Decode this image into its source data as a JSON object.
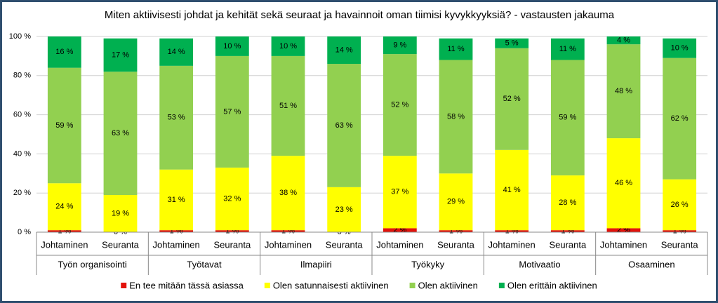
{
  "chart_data": {
    "type": "stacked-bar",
    "title": "Miten aktiivisesti johdat ja kehität sekä seuraat ja havainnoit oman tiimisi kyvykkyyksiä? - vastausten jakauma",
    "categories": [
      "Johtaminen",
      "Seuranta",
      "Johtaminen",
      "Seuranta",
      "Johtaminen",
      "Seuranta",
      "Johtaminen",
      "Seuranta",
      "Johtaminen",
      "Seuranta",
      "Johtaminen",
      "Seuranta"
    ],
    "category_groups": [
      "Työn organisointi",
      "Työtavat",
      "Ilmapiiri",
      "Työkyky",
      "Motivaatio",
      "Osaaminen"
    ],
    "series": [
      {
        "name": "En tee mitään tässä asiassa",
        "color": "#e3120b",
        "values": [
          1,
          0,
          1,
          1,
          1,
          0,
          2,
          1,
          1,
          1,
          2,
          1
        ],
        "value_labels": [
          "1 %",
          "0 %",
          "1 %",
          "1 %",
          "1 %",
          "0 %",
          "2 %",
          "1 %",
          "1 %",
          "1 %",
          "2 %",
          "1 %"
        ]
      },
      {
        "name": "Olen satunnaisesti aktiivinen",
        "color": "#ffff00",
        "values": [
          24,
          19,
          31,
          32,
          38,
          23,
          37,
          29,
          41,
          28,
          46,
          26
        ],
        "value_labels": [
          "24 %",
          "19 %",
          "31 %",
          "32 %",
          "38 %",
          "23 %",
          "37 %",
          "29 %",
          "41 %",
          "28 %",
          "46 %",
          "26 %"
        ]
      },
      {
        "name": "Olen aktiivinen",
        "color": "#92d050",
        "values": [
          59,
          63,
          53,
          57,
          51,
          63,
          52,
          58,
          52,
          59,
          48,
          62
        ],
        "value_labels": [
          "59 %",
          "63 %",
          "53 %",
          "57 %",
          "51 %",
          "63 %",
          "52 %",
          "58 %",
          "52 %",
          "59 %",
          "48 %",
          "62 %"
        ]
      },
      {
        "name": "Olen erittäin aktiivinen",
        "color": "#00b050",
        "values": [
          16,
          17,
          14,
          10,
          10,
          14,
          9,
          11,
          5,
          11,
          4,
          10
        ],
        "value_labels": [
          "16 %",
          "17 %",
          "14 %",
          "10 %",
          "10 %",
          "14 %",
          "9 %",
          "11 %",
          "5 %",
          "11 %",
          "4 %",
          "10 %"
        ]
      }
    ],
    "ylim": [
      0,
      100
    ],
    "yticks": [
      {
        "value": 0,
        "label": "0 %"
      },
      {
        "value": 20,
        "label": "20 %"
      },
      {
        "value": 40,
        "label": "40 %"
      },
      {
        "value": 60,
        "label": "60 %"
      },
      {
        "value": 80,
        "label": "80 %"
      },
      {
        "value": 100,
        "label": "100 %"
      }
    ],
    "grid": true,
    "legend": "bottom"
  }
}
